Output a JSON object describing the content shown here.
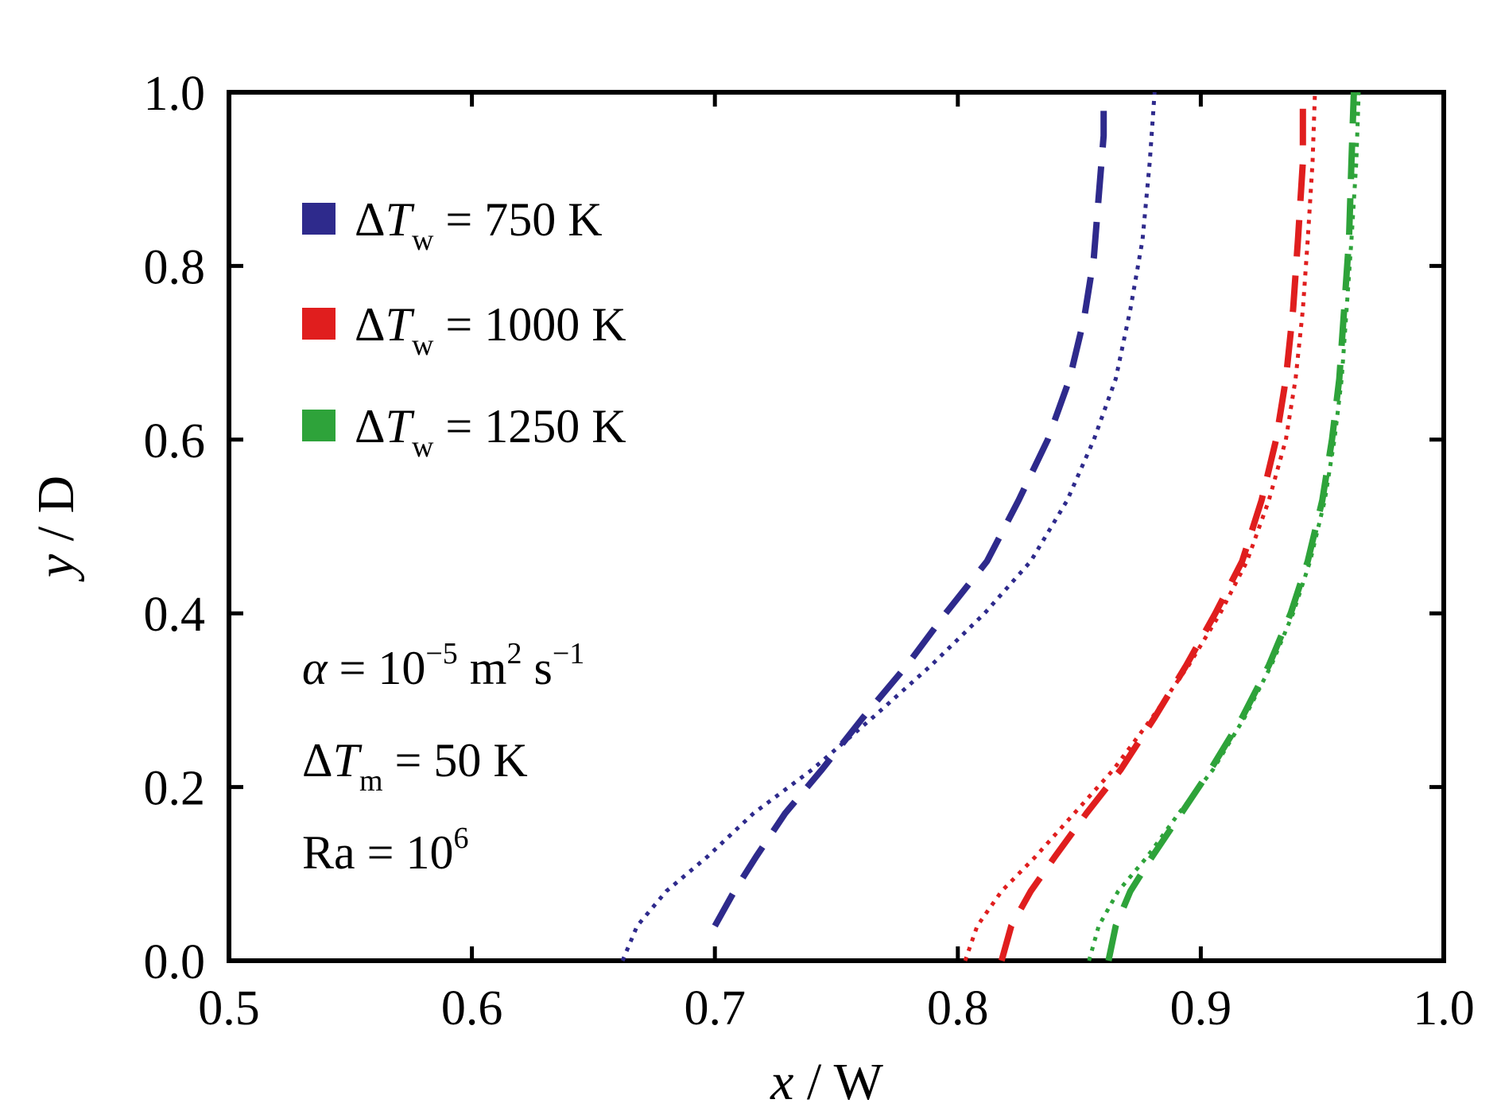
{
  "chart_data": {
    "type": "line",
    "title": "",
    "xlabel": {
      "var": "x",
      "unit": "W",
      "sep": " / "
    },
    "ylabel": {
      "var": "y",
      "unit": "D",
      "sep": " / "
    },
    "xlim": [
      0.5,
      1.0
    ],
    "ylim": [
      0.0,
      1.0
    ],
    "xticks": [
      0.5,
      0.6,
      0.7,
      0.8,
      0.9,
      1.0
    ],
    "yticks": [
      0.0,
      0.2,
      0.4,
      0.6,
      0.8,
      1.0
    ],
    "xtick_labels": [
      "0.5",
      "0.6",
      "0.7",
      "0.8",
      "0.9",
      "1.0"
    ],
    "ytick_labels": [
      "0.0",
      "0.2",
      "0.4",
      "0.6",
      "0.8",
      "1.0"
    ],
    "legend": [
      {
        "delta": "Δ",
        "var": "T",
        "sub": "w",
        "rest": " = 750 K",
        "color": "#2e2a8c"
      },
      {
        "delta": "Δ",
        "var": "T",
        "sub": "w",
        "rest": " = 1000 K",
        "color": "#e01e1e"
      },
      {
        "delta": "Δ",
        "var": "T",
        "sub": "w",
        "rest": " = 1250 K",
        "color": "#2ea33a"
      }
    ],
    "annotations": {
      "alpha": {
        "sym": "α",
        "eq": " = 10",
        "exp": "−5",
        "unit1": " m",
        "unit1_exp": "2",
        "unit2": " s",
        "unit2_exp": "−1"
      },
      "dTm": {
        "delta": "Δ",
        "var": "T",
        "sub": "m",
        "rest": " = 50 K"
      },
      "ra": {
        "text": "Ra = 10",
        "exp": "6"
      }
    },
    "series": [
      {
        "name": "750 K dashed",
        "color": "#2e2a8c",
        "style": "dashed",
        "x": [
          0.7,
          0.708,
          0.717,
          0.729,
          0.744,
          0.761,
          0.779,
          0.795,
          0.812,
          0.825,
          0.837,
          0.846,
          0.852,
          0.856,
          0.858,
          0.86,
          0.86
        ],
        "y": [
          0.04,
          0.08,
          0.12,
          0.17,
          0.22,
          0.28,
          0.34,
          0.4,
          0.46,
          0.53,
          0.6,
          0.67,
          0.74,
          0.81,
          0.88,
          0.95,
          1.0
        ]
      },
      {
        "name": "750 K dotted",
        "color": "#2e2a8c",
        "style": "dotted",
        "x": [
          0.662,
          0.668,
          0.68,
          0.697,
          0.716,
          0.74,
          0.765,
          0.789,
          0.811,
          0.83,
          0.845,
          0.856,
          0.865,
          0.871,
          0.876,
          0.879,
          0.881
        ],
        "y": [
          0.0,
          0.04,
          0.08,
          0.12,
          0.17,
          0.22,
          0.28,
          0.34,
          0.4,
          0.46,
          0.53,
          0.6,
          0.67,
          0.75,
          0.83,
          0.92,
          1.0
        ]
      },
      {
        "name": "1000 K dashed",
        "color": "#e01e1e",
        "style": "dashed",
        "x": [
          0.818,
          0.822,
          0.83,
          0.84,
          0.853,
          0.867,
          0.881,
          0.894,
          0.906,
          0.917,
          0.925,
          0.931,
          0.935,
          0.938,
          0.94,
          0.942,
          0.942
        ],
        "y": [
          0.0,
          0.04,
          0.08,
          0.12,
          0.17,
          0.22,
          0.28,
          0.34,
          0.4,
          0.46,
          0.53,
          0.6,
          0.67,
          0.75,
          0.83,
          0.92,
          1.0
        ]
      },
      {
        "name": "1000 K dotted",
        "color": "#e01e1e",
        "style": "dotted",
        "x": [
          0.803,
          0.808,
          0.818,
          0.832,
          0.848,
          0.864,
          0.88,
          0.895,
          0.908,
          0.919,
          0.928,
          0.935,
          0.939,
          0.942,
          0.944,
          0.946,
          0.947
        ],
        "y": [
          0.0,
          0.04,
          0.08,
          0.12,
          0.17,
          0.22,
          0.28,
          0.34,
          0.4,
          0.46,
          0.53,
          0.6,
          0.67,
          0.75,
          0.83,
          0.92,
          1.0
        ]
      },
      {
        "name": "1250 K dashed",
        "color": "#2ea33a",
        "style": "dashed",
        "x": [
          0.862,
          0.865,
          0.871,
          0.88,
          0.892,
          0.904,
          0.917,
          0.928,
          0.937,
          0.944,
          0.95,
          0.954,
          0.957,
          0.959,
          0.961,
          0.962,
          0.963
        ],
        "y": [
          0.0,
          0.04,
          0.08,
          0.12,
          0.17,
          0.22,
          0.28,
          0.34,
          0.4,
          0.46,
          0.53,
          0.6,
          0.67,
          0.75,
          0.83,
          0.92,
          1.0
        ]
      },
      {
        "name": "1250 K dotted",
        "color": "#2ea33a",
        "style": "dotted",
        "x": [
          0.854,
          0.858,
          0.866,
          0.878,
          0.891,
          0.905,
          0.918,
          0.929,
          0.938,
          0.945,
          0.951,
          0.955,
          0.958,
          0.96,
          0.962,
          0.964,
          0.965
        ],
        "y": [
          0.0,
          0.04,
          0.08,
          0.12,
          0.17,
          0.22,
          0.28,
          0.34,
          0.4,
          0.46,
          0.53,
          0.6,
          0.67,
          0.75,
          0.83,
          0.92,
          1.0
        ]
      }
    ]
  }
}
